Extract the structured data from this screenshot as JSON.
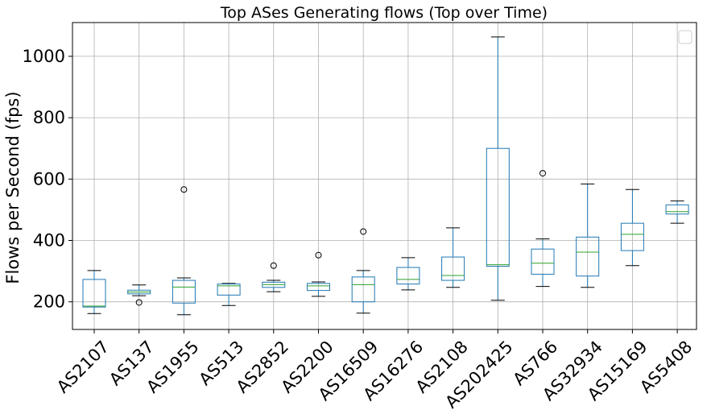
{
  "chart_data": {
    "type": "box",
    "title": "Top ASes Generating flows (Top over Time)",
    "xlabel": "",
    "ylabel": "Flows per Second (fps)",
    "ylim": [
      110,
      1110
    ],
    "yticks": [
      200,
      400,
      600,
      800,
      1000
    ],
    "grid": true,
    "legend": {
      "position": "top-right",
      "entries": []
    },
    "categories": [
      "AS2107",
      "AS137",
      "AS1955",
      "AS513",
      "AS2852",
      "AS2200",
      "AS16509",
      "AS16276",
      "AS2108",
      "AS202425",
      "AS766",
      "AS32934",
      "AS15169",
      "AS5408"
    ],
    "boxes": [
      {
        "whislo": 162,
        "q1": 183,
        "med": 186,
        "q3": 273,
        "whishi": 302,
        "fliers": []
      },
      {
        "whislo": 220,
        "q1": 226,
        "med": 232,
        "q3": 238,
        "whishi": 255,
        "fliers": [
          198
        ]
      },
      {
        "whislo": 158,
        "q1": 196,
        "med": 248,
        "q3": 270,
        "whishi": 278,
        "fliers": [
          566
        ]
      },
      {
        "whislo": 188,
        "q1": 222,
        "med": 252,
        "q3": 258,
        "whishi": 260,
        "fliers": []
      },
      {
        "whislo": 233,
        "q1": 247,
        "med": 256,
        "q3": 264,
        "whishi": 270,
        "fliers": [
          318
        ]
      },
      {
        "whislo": 218,
        "q1": 237,
        "med": 252,
        "q3": 260,
        "whishi": 265,
        "fliers": [
          352
        ]
      },
      {
        "whislo": 163,
        "q1": 200,
        "med": 256,
        "q3": 281,
        "whishi": 302,
        "fliers": [
          429
        ]
      },
      {
        "whislo": 239,
        "q1": 258,
        "med": 273,
        "q3": 312,
        "whishi": 344,
        "fliers": []
      },
      {
        "whislo": 247,
        "q1": 270,
        "med": 286,
        "q3": 346,
        "whishi": 441,
        "fliers": []
      },
      {
        "whislo": 205,
        "q1": 316,
        "med": 321,
        "q3": 700,
        "whishi": 1063,
        "fliers": []
      },
      {
        "whislo": 250,
        "q1": 290,
        "med": 326,
        "q3": 372,
        "whishi": 405,
        "fliers": [
          619
        ]
      },
      {
        "whislo": 247,
        "q1": 284,
        "med": 362,
        "q3": 411,
        "whishi": 584,
        "fliers": []
      },
      {
        "whislo": 318,
        "q1": 367,
        "med": 420,
        "q3": 456,
        "whishi": 566,
        "fliers": []
      },
      {
        "whislo": 456,
        "q1": 486,
        "med": 494,
        "q3": 516,
        "whishi": 529,
        "fliers": []
      }
    ],
    "colors": {
      "box": "#1f77b4",
      "median": "#2ca02c",
      "grid": "#b0b0b0",
      "cap": "#000000"
    }
  }
}
